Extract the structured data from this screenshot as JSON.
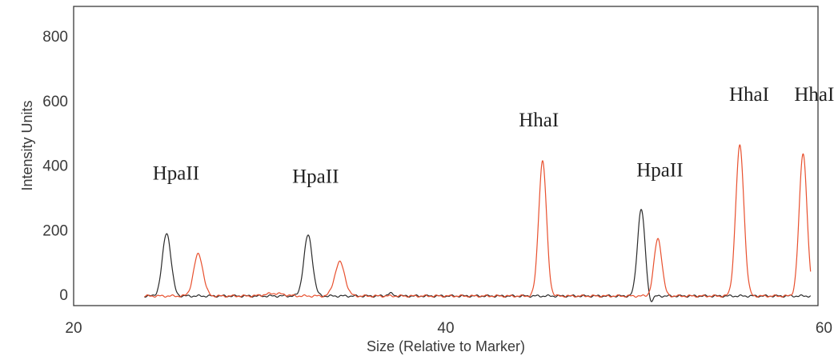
{
  "chart_data": {
    "type": "line",
    "xlabel": "Size (Relative to Marker)",
    "ylabel": "Intensity Units",
    "xlim": [
      20,
      60
    ],
    "ylim": [
      -30,
      900
    ],
    "xticks": [
      "20",
      "40",
      "60"
    ],
    "yticks": [
      "0",
      "200",
      "400",
      "600",
      "800"
    ],
    "grid": false,
    "x_range": [
      23.8,
      59.6
    ],
    "series": [
      {
        "color": "#2b2b2b",
        "baseline": -5,
        "peaks": [
          {
            "x": 25.0,
            "y": 195,
            "sigma": 0.23
          },
          {
            "x": 32.6,
            "y": 188,
            "sigma": 0.23
          },
          {
            "x": 37.0,
            "y": 8,
            "sigma": 0.15
          },
          {
            "x": 50.5,
            "y": 270,
            "sigma": 0.2
          },
          {
            "x": 51.0,
            "y": -22,
            "sigma": 0.12
          }
        ]
      },
      {
        "color": "#e8502e",
        "baseline": -5,
        "peaks": [
          {
            "x": 26.7,
            "y": 130,
            "sigma": 0.25
          },
          {
            "x": 30.8,
            "y": 8,
            "sigma": 0.5
          },
          {
            "x": 34.3,
            "y": 105,
            "sigma": 0.27
          },
          {
            "x": 45.2,
            "y": 418,
            "sigma": 0.21
          },
          {
            "x": 51.4,
            "y": 178,
            "sigma": 0.21
          },
          {
            "x": 55.8,
            "y": 465,
            "sigma": 0.22
          },
          {
            "x": 59.2,
            "y": 443,
            "sigma": 0.21
          }
        ]
      }
    ],
    "annotations": [
      {
        "text": "HpaII",
        "x": 25.5,
        "y": 355
      },
      {
        "text": "HpaII",
        "x": 33.0,
        "y": 345
      },
      {
        "text": "HhaI",
        "x": 45.0,
        "y": 520
      },
      {
        "text": "HpaII",
        "x": 51.5,
        "y": 365
      },
      {
        "text": "HhaI",
        "x": 56.3,
        "y": 600
      },
      {
        "text": "HhaI",
        "x": 59.8,
        "y": 600
      }
    ]
  }
}
